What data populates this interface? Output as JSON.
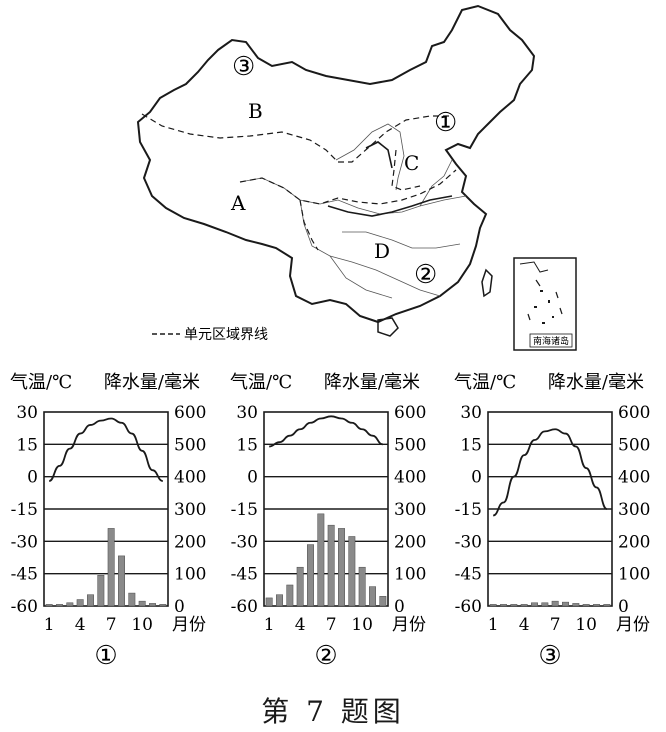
{
  "map": {
    "region_labels": [
      "A",
      "B",
      "C",
      "D"
    ],
    "station_markers": [
      "①",
      "②",
      "③"
    ],
    "legend_label": "单元区域界线",
    "inset_label": "南海诸岛"
  },
  "charts": {
    "left_axis_label": "气温/℃",
    "right_axis_label": "降水量/毫米",
    "month_unit": "月份",
    "month_ticks": [
      "1",
      "4",
      "7",
      "10"
    ]
  },
  "caption": "第 7 题图",
  "chart_data": [
    {
      "type": "bar",
      "title": "①",
      "x": [
        1,
        2,
        3,
        4,
        5,
        6,
        7,
        8,
        9,
        10,
        11,
        12
      ],
      "y_left_label": "气温/℃",
      "y_right_label": "降水量/毫米",
      "ylim_left": [
        -60,
        30
      ],
      "ylim_right": [
        0,
        600
      ],
      "y_left_ticks": [
        30,
        15,
        0,
        -15,
        -30,
        -45,
        -60
      ],
      "y_right_ticks": [
        600,
        500,
        400,
        300,
        200,
        100,
        0
      ],
      "series": [
        {
          "type": "line",
          "axis": "left",
          "values": [
            -2,
            5,
            13,
            20,
            24,
            26,
            27,
            25,
            20,
            12,
            3,
            -2
          ]
        },
        {
          "type": "bar",
          "axis": "right",
          "values": [
            5,
            5,
            10,
            20,
            35,
            95,
            240,
            155,
            40,
            15,
            8,
            5
          ]
        }
      ]
    },
    {
      "type": "bar",
      "title": "②",
      "x": [
        1,
        2,
        3,
        4,
        5,
        6,
        7,
        8,
        9,
        10,
        11,
        12
      ],
      "y_left_label": "气温/℃",
      "y_right_label": "降水量/毫米",
      "ylim_left": [
        -60,
        30
      ],
      "ylim_right": [
        0,
        600
      ],
      "y_left_ticks": [
        30,
        15,
        0,
        -15,
        -30,
        -45,
        -60
      ],
      "y_right_ticks": [
        600,
        500,
        400,
        300,
        200,
        100,
        0
      ],
      "series": [
        {
          "type": "line",
          "axis": "left",
          "values": [
            14,
            16,
            19,
            22,
            25,
            27,
            28,
            27,
            25,
            22,
            19,
            15
          ]
        },
        {
          "type": "bar",
          "axis": "right",
          "values": [
            25,
            35,
            65,
            120,
            190,
            285,
            250,
            240,
            215,
            120,
            60,
            30
          ]
        }
      ]
    },
    {
      "type": "bar",
      "title": "③",
      "x": [
        1,
        2,
        3,
        4,
        5,
        6,
        7,
        8,
        9,
        10,
        11,
        12
      ],
      "y_left_label": "气温/℃",
      "y_right_label": "降水量/毫米",
      "ylim_left": [
        -60,
        30
      ],
      "ylim_right": [
        0,
        600
      ],
      "y_left_ticks": [
        30,
        15,
        0,
        -15,
        -30,
        -45,
        -60
      ],
      "y_right_ticks": [
        600,
        500,
        400,
        300,
        200,
        100,
        0
      ],
      "series": [
        {
          "type": "line",
          "axis": "left",
          "values": [
            -18,
            -12,
            0,
            10,
            17,
            21,
            22,
            20,
            14,
            4,
            -5,
            -15
          ]
        },
        {
          "type": "bar",
          "axis": "right",
          "values": [
            5,
            5,
            5,
            5,
            10,
            10,
            15,
            12,
            8,
            5,
            5,
            5
          ]
        }
      ]
    }
  ]
}
